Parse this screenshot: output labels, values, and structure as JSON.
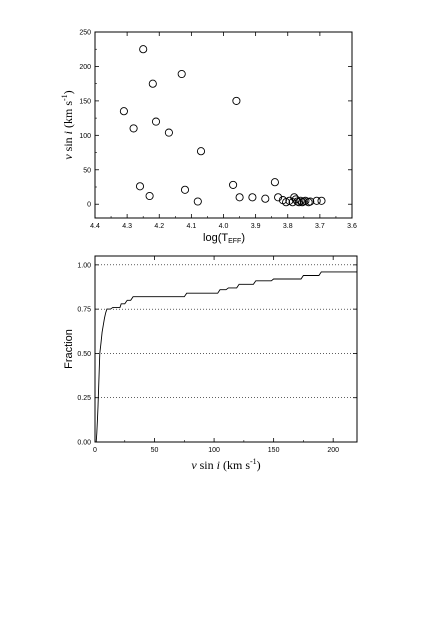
{
  "chart_data": [
    {
      "type": "scatter",
      "xlabel": {
        "main": "log(T",
        "sub": "EFF",
        "close": ")"
      },
      "ylabel": {
        "var": "v",
        "fn": " sin ",
        "i": "i",
        "unit": " (km s",
        "sup": "-1",
        "close": ")"
      },
      "x_reversed": true,
      "xlim": [
        4.4,
        3.6
      ],
      "ylim": [
        -20,
        250
      ],
      "x_ticks": [
        "4.4",
        "4.3",
        "4.2",
        "4.1",
        "4.0",
        "3.9",
        "3.8",
        "3.7",
        "3.6"
      ],
      "y_ticks": [
        "0",
        "50",
        "100",
        "150",
        "200",
        "250"
      ],
      "marker": "open-circle",
      "points": [
        {
          "x": 4.31,
          "y": 135
        },
        {
          "x": 4.28,
          "y": 110
        },
        {
          "x": 4.26,
          "y": 26
        },
        {
          "x": 4.25,
          "y": 225
        },
        {
          "x": 4.23,
          "y": 12
        },
        {
          "x": 4.22,
          "y": 175
        },
        {
          "x": 4.21,
          "y": 120
        },
        {
          "x": 4.17,
          "y": 104
        },
        {
          "x": 4.13,
          "y": 189
        },
        {
          "x": 4.12,
          "y": 21
        },
        {
          "x": 4.08,
          "y": 4
        },
        {
          "x": 4.07,
          "y": 77
        },
        {
          "x": 3.97,
          "y": 28
        },
        {
          "x": 3.96,
          "y": 150
        },
        {
          "x": 3.95,
          "y": 10
        },
        {
          "x": 3.91,
          "y": 10
        },
        {
          "x": 3.87,
          "y": 8
        },
        {
          "x": 3.84,
          "y": 32
        },
        {
          "x": 3.83,
          "y": 10
        },
        {
          "x": 3.815,
          "y": 6
        },
        {
          "x": 3.805,
          "y": 3
        },
        {
          "x": 3.795,
          "y": 5
        },
        {
          "x": 3.785,
          "y": 3
        },
        {
          "x": 3.78,
          "y": 10
        },
        {
          "x": 3.775,
          "y": 7
        },
        {
          "x": 3.77,
          "y": 4
        },
        {
          "x": 3.765,
          "y": 3
        },
        {
          "x": 3.76,
          "y": 5
        },
        {
          "x": 3.755,
          "y": 3
        },
        {
          "x": 3.75,
          "y": 4
        },
        {
          "x": 3.745,
          "y": 5
        },
        {
          "x": 3.735,
          "y": 3
        },
        {
          "x": 3.73,
          "y": 4
        },
        {
          "x": 3.71,
          "y": 5
        },
        {
          "x": 3.695,
          "y": 5
        }
      ]
    },
    {
      "type": "line",
      "step": true,
      "xlabel": {
        "var": "v",
        "fn": " sin ",
        "i": "i",
        "unit": " (km s",
        "sup": "-1",
        "close": ")"
      },
      "ylabel": "Fraction",
      "xlim": [
        0,
        220
      ],
      "ylim": [
        0,
        1.05
      ],
      "x_ticks": [
        "0",
        "50",
        "100",
        "150",
        "200"
      ],
      "y_ticks": [
        "0.00",
        "0.25",
        "0.50",
        "0.75",
        "1.00"
      ],
      "gridlines_y": [
        0.25,
        0.5,
        0.75,
        1.0
      ],
      "points": [
        {
          "x": 1,
          "y": 0.0
        },
        {
          "x": 1.5,
          "y": 0.05
        },
        {
          "x": 2,
          "y": 0.12
        },
        {
          "x": 2.5,
          "y": 0.2
        },
        {
          "x": 3,
          "y": 0.3
        },
        {
          "x": 3.5,
          "y": 0.4
        },
        {
          "x": 4,
          "y": 0.5
        },
        {
          "x": 5,
          "y": 0.56
        },
        {
          "x": 6,
          "y": 0.62
        },
        {
          "x": 7,
          "y": 0.66
        },
        {
          "x": 8,
          "y": 0.7
        },
        {
          "x": 9,
          "y": 0.73
        },
        {
          "x": 10,
          "y": 0.75
        },
        {
          "x": 13,
          "y": 0.75
        },
        {
          "x": 15,
          "y": 0.76
        },
        {
          "x": 21,
          "y": 0.76
        },
        {
          "x": 22,
          "y": 0.78
        },
        {
          "x": 25,
          "y": 0.78
        },
        {
          "x": 27,
          "y": 0.8
        },
        {
          "x": 30,
          "y": 0.8
        },
        {
          "x": 32,
          "y": 0.82
        },
        {
          "x": 75,
          "y": 0.82
        },
        {
          "x": 77,
          "y": 0.84
        },
        {
          "x": 103,
          "y": 0.84
        },
        {
          "x": 105,
          "y": 0.86
        },
        {
          "x": 110,
          "y": 0.86
        },
        {
          "x": 112,
          "y": 0.87
        },
        {
          "x": 119,
          "y": 0.87
        },
        {
          "x": 121,
          "y": 0.89
        },
        {
          "x": 133,
          "y": 0.89
        },
        {
          "x": 135,
          "y": 0.91
        },
        {
          "x": 148,
          "y": 0.91
        },
        {
          "x": 150,
          "y": 0.92
        },
        {
          "x": 173,
          "y": 0.92
        },
        {
          "x": 175,
          "y": 0.94
        },
        {
          "x": 188,
          "y": 0.94
        },
        {
          "x": 190,
          "y": 0.96
        },
        {
          "x": 223,
          "y": 0.96
        },
        {
          "x": 225,
          "y": 0.98
        }
      ]
    }
  ]
}
